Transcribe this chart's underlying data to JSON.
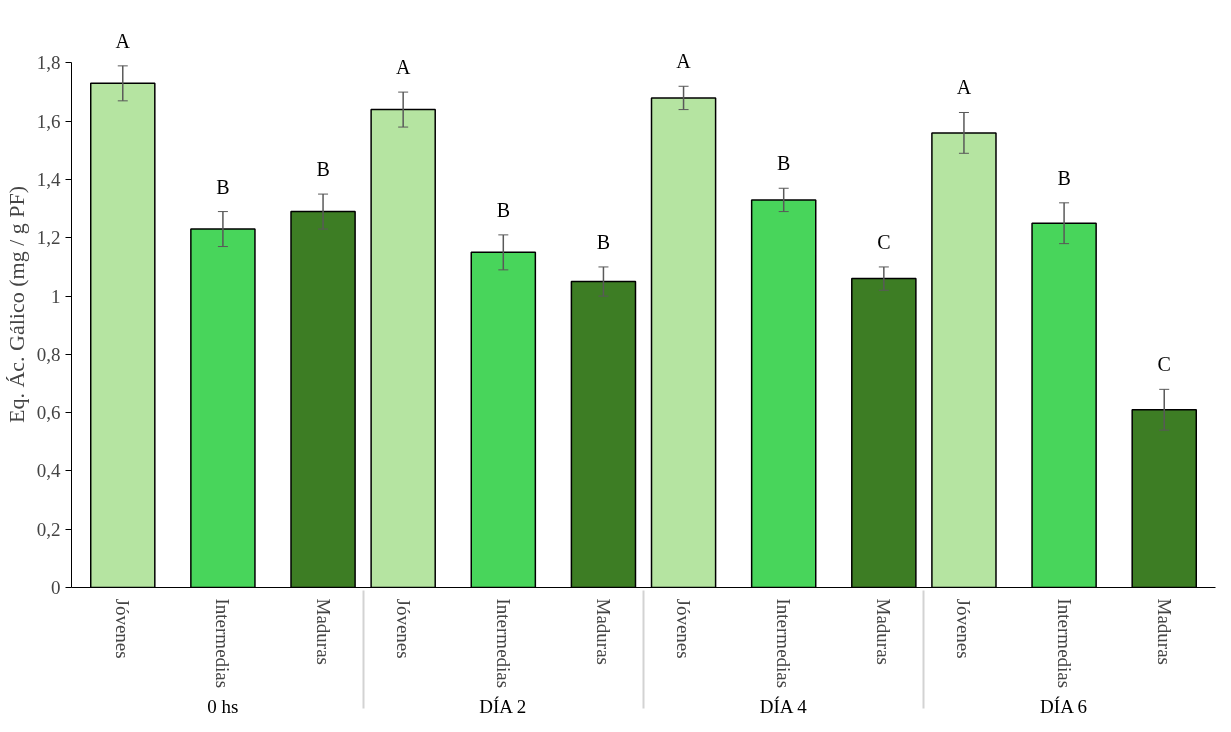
{
  "chart_data": {
    "type": "bar",
    "ylabel": "Eq.  Ác. Gálico  (mg / g PF)",
    "categories": [
      "0 hs",
      "DÍA 2",
      "DÍA 4",
      "DÍA 6"
    ],
    "series": [
      {
        "name": "Jóvenes",
        "color": "#b5e4a1",
        "values": [
          1.73,
          1.64,
          1.68,
          1.56
        ],
        "errors": [
          0.06,
          0.06,
          0.04,
          0.07
        ],
        "value_labels": [
          "A",
          "A",
          "A",
          "A"
        ]
      },
      {
        "name": "Intermedias",
        "color": "#48d55b",
        "values": [
          1.23,
          1.15,
          1.33,
          1.25
        ],
        "errors": [
          0.06,
          0.06,
          0.04,
          0.07
        ],
        "value_labels": [
          "B",
          "B",
          "B",
          "B"
        ]
      },
      {
        "name": "Maduras",
        "color": "#3d7d24",
        "values": [
          1.29,
          1.05,
          1.06,
          0.61
        ],
        "errors": [
          0.06,
          0.05,
          0.04,
          0.07
        ],
        "value_labels": [
          "B",
          "B",
          "C",
          "C"
        ]
      }
    ],
    "ylim": [
      0,
      1.8
    ],
    "yticks": [
      0,
      {
        "value": 0.2,
        "label": "0,2"
      },
      {
        "value": 0.4,
        "label": "0,4"
      },
      {
        "value": 0.6,
        "label": "0,6"
      },
      {
        "value": 0.8,
        "label": "0,8"
      },
      1,
      {
        "value": 1.2,
        "label": "1,2"
      },
      {
        "value": 1.4,
        "label": "1,4"
      },
      {
        "value": 1.6,
        "label": "1,6"
      },
      {
        "value": 1.8,
        "label": "1,8"
      }
    ],
    "grid": false
  }
}
